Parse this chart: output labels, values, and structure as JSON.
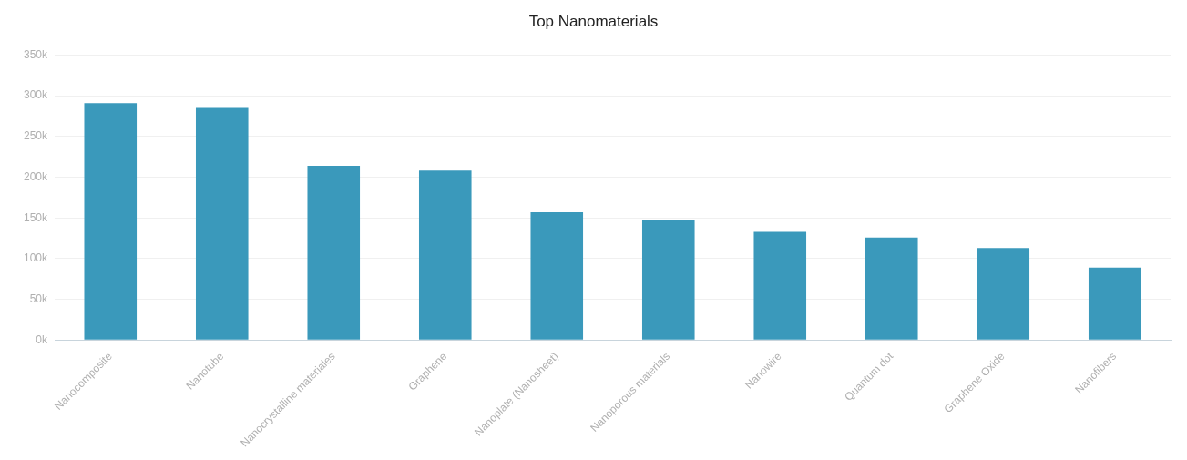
{
  "chart_data": {
    "type": "bar",
    "title": "Top Nanomaterials",
    "categories": [
      "Nanocomposite",
      "Nanotube",
      "Nanocrystalline materiales",
      "Graphene",
      "Nanoplate (Nanosheet)",
      "Nanoporous materials",
      "Nanowire",
      "Quantum dot",
      "Graphene Oxide",
      "Nanofibers"
    ],
    "values": [
      291000,
      285000,
      214000,
      208000,
      157000,
      148000,
      133000,
      126000,
      113000,
      89000
    ],
    "color": "#3a99bb",
    "ylim": [
      0,
      350000
    ],
    "yticks": [
      {
        "value": 0,
        "label": "0k"
      },
      {
        "value": 50000,
        "label": "50k"
      },
      {
        "value": 100000,
        "label": "100k"
      },
      {
        "value": 150000,
        "label": "150k"
      },
      {
        "value": 200000,
        "label": "200k"
      },
      {
        "value": 250000,
        "label": "250k"
      },
      {
        "value": 300000,
        "label": "300k"
      },
      {
        "value": 350000,
        "label": "350k"
      }
    ],
    "grid": "y",
    "legend": false
  }
}
